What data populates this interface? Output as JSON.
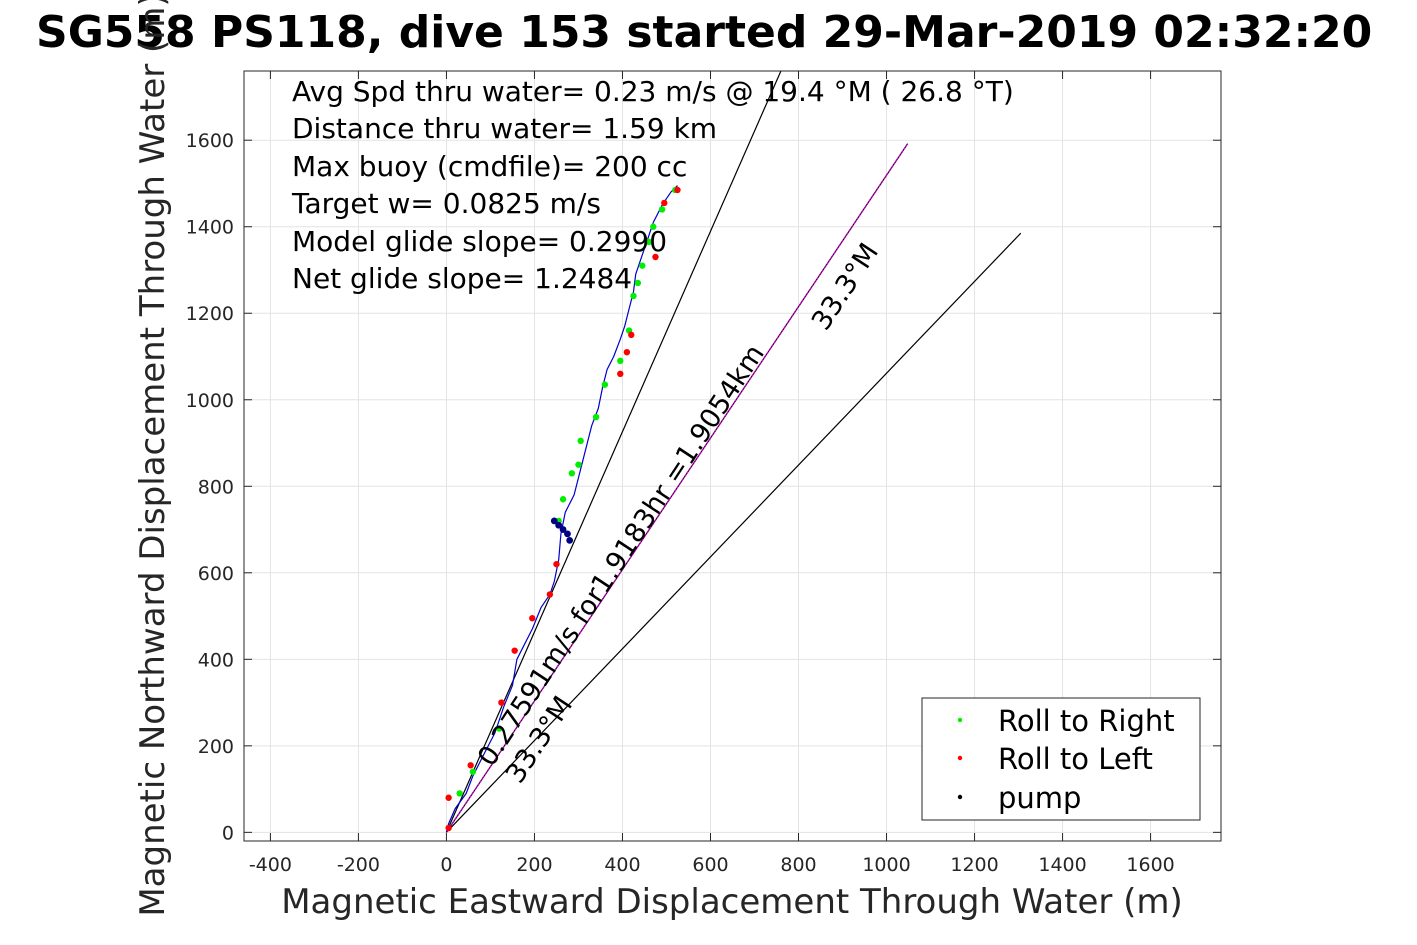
{
  "chart_data": {
    "type": "line",
    "title": "SG558 PS118, dive 153 started 29-Mar-2019 02:32:20",
    "xlabel": "Magnetic Eastward Displacement Through Water (m)",
    "ylabel": "Magnetic Northward Displacement Through Water (m)",
    "xlim": [
      -460,
      1760
    ],
    "ylim": [
      -20,
      1760
    ],
    "xticks": [
      -400,
      -200,
      0,
      200,
      400,
      600,
      800,
      1000,
      1200,
      1400,
      1600
    ],
    "yticks": [
      0,
      200,
      400,
      600,
      800,
      1000,
      1200,
      1400,
      1600
    ],
    "grid": true,
    "annotations": [
      "Avg Spd thru water=  0.23 m/s @  19.4 °M ( 26.8 °T)",
      "Distance thru water=  1.59 km",
      "Max buoy (cmdfile)= 200 cc",
      "Target w= 0.0825 m/s",
      "Model glide slope= 0.2990",
      "Net glide slope= 1.2484"
    ],
    "rotated_labels": {
      "speed": "0.27591m/s for1.9183hr =1.9054km",
      "heading_upper": "33.3°M",
      "heading_lower": "33.3°M"
    },
    "legend": {
      "placement": "bottom-right",
      "entries": [
        {
          "label": "Roll to Right",
          "color": "#00ee00"
        },
        {
          "label": "Roll to Left",
          "color": "#ff0000"
        },
        {
          "label": "pump",
          "color": "#000000"
        }
      ]
    },
    "colors": {
      "track": "#0000cc",
      "roll_right": "#00ee00",
      "roll_left": "#ff0000",
      "pump": "#000080",
      "current_line": "#cc00cc",
      "wedge_lines": "#000000"
    },
    "lines": {
      "wedge_left": {
        "from": [
          0,
          0
        ],
        "to": [
          760,
          1760
        ]
      },
      "wedge_center": {
        "from": [
          0,
          0
        ],
        "to": [
          1048,
          1592
        ]
      },
      "wedge_right": {
        "from": [
          0,
          0
        ],
        "to": [
          1305,
          1385
        ]
      },
      "current": {
        "from": [
          0,
          0
        ],
        "to": [
          1048,
          1592
        ]
      }
    },
    "track": {
      "x": [
        0,
        5,
        20,
        45,
        60,
        85,
        110,
        130,
        150,
        160,
        175,
        195,
        215,
        235,
        245,
        255,
        260,
        270,
        290,
        300,
        310,
        320,
        330,
        345,
        355,
        365,
        380,
        395,
        405,
        415,
        425,
        430,
        440,
        450,
        460,
        470,
        480,
        490,
        500,
        510,
        525
      ],
      "y": [
        0,
        20,
        55,
        90,
        130,
        180,
        230,
        290,
        340,
        400,
        430,
        470,
        520,
        550,
        580,
        630,
        690,
        740,
        780,
        820,
        860,
        900,
        940,
        980,
        1030,
        1070,
        1100,
        1140,
        1170,
        1210,
        1250,
        1290,
        1320,
        1350,
        1380,
        1410,
        1430,
        1450,
        1465,
        1480,
        1495
      ]
    },
    "roll_right_points": {
      "x": [
        30,
        60,
        120,
        255,
        265,
        285,
        300,
        305,
        340,
        360,
        395,
        415,
        425,
        435,
        445,
        460,
        470,
        490,
        520
      ],
      "y": [
        90,
        140,
        240,
        720,
        770,
        830,
        850,
        905,
        960,
        1035,
        1090,
        1160,
        1240,
        1270,
        1310,
        1365,
        1400,
        1440,
        1485
      ]
    },
    "roll_left_points": {
      "x": [
        5,
        5,
        55,
        125,
        155,
        195,
        235,
        250,
        395,
        410,
        420,
        475,
        495,
        525
      ],
      "y": [
        10,
        80,
        155,
        300,
        420,
        495,
        550,
        620,
        1060,
        1110,
        1150,
        1330,
        1455,
        1485
      ]
    },
    "pump_points": {
      "x": [
        245,
        255,
        265,
        275,
        280
      ],
      "y": [
        720,
        710,
        700,
        690,
        675
      ]
    }
  }
}
